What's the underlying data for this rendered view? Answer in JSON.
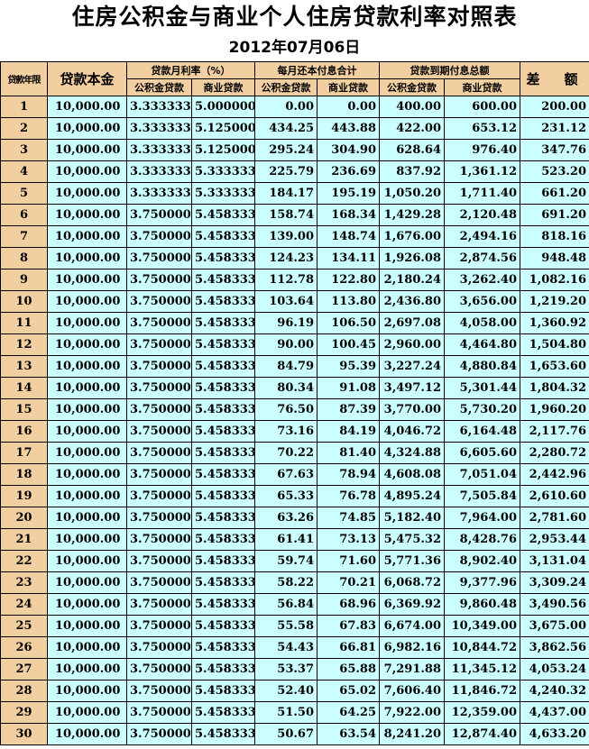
{
  "title": "住房公积金与商业个人住房贷款利率对照表",
  "date": "2012年07月06日",
  "headers": {
    "term_years": "贷款年限",
    "principal": "贷款本金",
    "monthly_rate": "贷款月利率（%）",
    "monthly_payment": "每月还本付息合计",
    "total_interest": "贷款到期付息总额",
    "difference": "差　额",
    "housing_fund_loan": "公积金贷款",
    "commercial_loan": "商业贷款"
  },
  "rows": [
    [
      "1",
      "10,000.00",
      "3.333333",
      "5.000000",
      "0.00",
      "0.00",
      "400.00",
      "600.00",
      "200.00"
    ],
    [
      "2",
      "10,000.00",
      "3.333333",
      "5.125000",
      "434.25",
      "443.88",
      "422.00",
      "653.12",
      "231.12"
    ],
    [
      "3",
      "10,000.00",
      "3.333333",
      "5.125000",
      "295.24",
      "304.90",
      "628.64",
      "976.40",
      "347.76"
    ],
    [
      "4",
      "10,000.00",
      "3.333333",
      "5.333333",
      "225.79",
      "236.69",
      "837.92",
      "1,361.12",
      "523.20"
    ],
    [
      "5",
      "10,000.00",
      "3.333333",
      "5.333333",
      "184.17",
      "195.19",
      "1,050.20",
      "1,711.40",
      "661.20"
    ],
    [
      "6",
      "10,000.00",
      "3.750000",
      "5.458333",
      "158.74",
      "168.34",
      "1,429.28",
      "2,120.48",
      "691.20"
    ],
    [
      "7",
      "10,000.00",
      "3.750000",
      "5.458333",
      "139.00",
      "148.74",
      "1,676.00",
      "2,494.16",
      "818.16"
    ],
    [
      "8",
      "10,000.00",
      "3.750000",
      "5.458333",
      "124.23",
      "134.11",
      "1,926.08",
      "2,874.56",
      "948.48"
    ],
    [
      "9",
      "10,000.00",
      "3.750000",
      "5.458333",
      "112.78",
      "122.80",
      "2,180.24",
      "3,262.40",
      "1,082.16"
    ],
    [
      "10",
      "10,000.00",
      "3.750000",
      "5.458333",
      "103.64",
      "113.80",
      "2,436.80",
      "3,656.00",
      "1,219.20"
    ],
    [
      "11",
      "10,000.00",
      "3.750000",
      "5.458333",
      "96.19",
      "106.50",
      "2,697.08",
      "4,058.00",
      "1,360.92"
    ],
    [
      "12",
      "10,000.00",
      "3.750000",
      "5.458333",
      "90.00",
      "100.45",
      "2,960.00",
      "4,464.80",
      "1,504.80"
    ],
    [
      "13",
      "10,000.00",
      "3.750000",
      "5.458333",
      "84.79",
      "95.39",
      "3,227.24",
      "4,880.84",
      "1,653.60"
    ],
    [
      "14",
      "10,000.00",
      "3.750000",
      "5.458333",
      "80.34",
      "91.08",
      "3,497.12",
      "5,301.44",
      "1,804.32"
    ],
    [
      "15",
      "10,000.00",
      "3.750000",
      "5.458333",
      "76.50",
      "87.39",
      "3,770.00",
      "5,730.20",
      "1,960.20"
    ],
    [
      "16",
      "10,000.00",
      "3.750000",
      "5.458333",
      "73.16",
      "84.19",
      "4,046.72",
      "6,164.48",
      "2,117.76"
    ],
    [
      "17",
      "10,000.00",
      "3.750000",
      "5.458333",
      "70.22",
      "81.40",
      "4,324.88",
      "6,605.60",
      "2,280.72"
    ],
    [
      "18",
      "10,000.00",
      "3.750000",
      "5.458333",
      "67.63",
      "78.94",
      "4,608.08",
      "7,051.04",
      "2,442.96"
    ],
    [
      "19",
      "10,000.00",
      "3.750000",
      "5.458333",
      "65.33",
      "76.78",
      "4,895.24",
      "7,505.84",
      "2,610.60"
    ],
    [
      "20",
      "10,000.00",
      "3.750000",
      "5.458333",
      "63.26",
      "74.85",
      "5,182.40",
      "7,964.00",
      "2,781.60"
    ],
    [
      "21",
      "10,000.00",
      "3.750000",
      "5.458333",
      "61.41",
      "73.13",
      "5,475.32",
      "8,428.76",
      "2,953.44"
    ],
    [
      "22",
      "10,000.00",
      "3.750000",
      "5.458333",
      "59.74",
      "71.60",
      "5,771.36",
      "8,902.40",
      "3,131.04"
    ],
    [
      "23",
      "10,000.00",
      "3.750000",
      "5.458333",
      "58.22",
      "70.21",
      "6,068.72",
      "9,377.96",
      "3,309.24"
    ],
    [
      "24",
      "10,000.00",
      "3.750000",
      "5.458333",
      "56.84",
      "68.96",
      "6,369.92",
      "9,860.48",
      "3,490.56"
    ],
    [
      "25",
      "10,000.00",
      "3.750000",
      "5.458333",
      "55.58",
      "67.83",
      "6,674.00",
      "10,349.00",
      "3,675.00"
    ],
    [
      "26",
      "10,000.00",
      "3.750000",
      "5.458333",
      "54.43",
      "66.81",
      "6,982.16",
      "10,844.72",
      "3,862.56"
    ],
    [
      "27",
      "10,000.00",
      "3.750000",
      "5.458333",
      "53.37",
      "65.88",
      "7,291.88",
      "11,345.12",
      "4,053.24"
    ],
    [
      "28",
      "10,000.00",
      "3.750000",
      "5.458333",
      "52.40",
      "65.02",
      "7,606.40",
      "11,846.72",
      "4,240.32"
    ],
    [
      "29",
      "10,000.00",
      "3.750000",
      "5.458333",
      "51.50",
      "64.25",
      "7,922.00",
      "12,359.00",
      "4,437.00"
    ],
    [
      "30",
      "10,000.00",
      "3.750000",
      "5.458333",
      "50.67",
      "63.54",
      "8,241.20",
      "12,874.40",
      "4,633.20"
    ]
  ]
}
